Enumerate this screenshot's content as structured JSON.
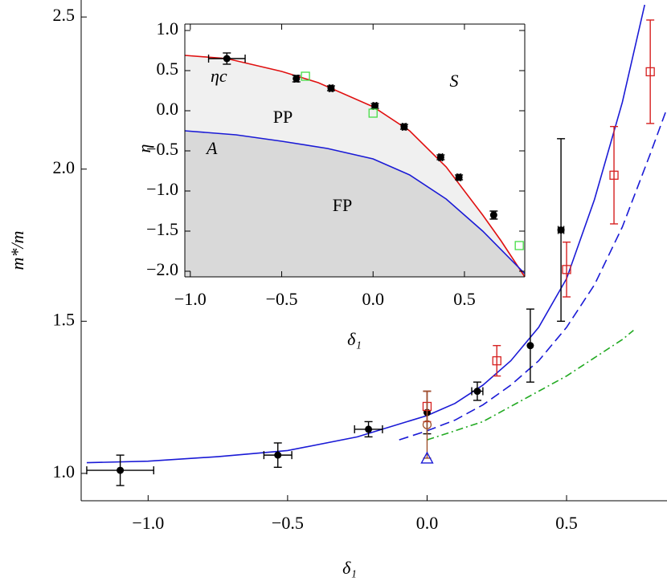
{
  "chart_data": [
    {
      "type": "scatter",
      "x_label": "δ₁",
      "y_label": "m*/m",
      "xlim": [
        -1.24,
        0.86
      ],
      "ylim": [
        0.91,
        2.54
      ],
      "xticks": [
        {
          "value": -1.0,
          "label": "−1.0"
        },
        {
          "value": -0.5,
          "label": "−0.5"
        },
        {
          "value": 0.0,
          "label": "0.0"
        },
        {
          "value": 0.5,
          "label": "0.5"
        }
      ],
      "yticks": [
        {
          "value": 1.0,
          "label": "1.0"
        },
        {
          "value": 1.5,
          "label": "1.5"
        },
        {
          "value": 2.0,
          "label": "2.0"
        },
        {
          "value": 2.5,
          "label": "2.5"
        }
      ],
      "series": [
        {
          "color": "#000000",
          "marker": "disc",
          "x": [
            -1.1,
            -0.535,
            -0.21,
            0.0,
            0.18,
            0.37,
            0.48
          ],
          "values": [
            1.01,
            1.06,
            1.145,
            1.2,
            1.27,
            1.42,
            1.8
          ],
          "yerr": [
            0.05,
            0.04,
            0.025,
            0.07,
            0.03,
            0.12,
            0.3
          ],
          "xerr": [
            0.12,
            0.05,
            0.05,
            null,
            0.02,
            null,
            0.01
          ]
        },
        {
          "color": "#d62020",
          "marker": "square",
          "x": [
            0.0,
            0.25,
            0.5,
            0.67,
            0.8
          ],
          "values": [
            1.22,
            1.37,
            1.67,
            1.98,
            2.32
          ],
          "yerr": [
            0.05,
            0.05,
            0.09,
            0.16,
            0.17
          ]
        },
        {
          "color": "#a0522d",
          "marker": "circle",
          "x": [
            0.0
          ],
          "values": [
            1.16
          ],
          "yerr": [
            0.11
          ]
        },
        {
          "color": "#1a1ad6",
          "marker": "triangle",
          "x": [
            0.0
          ],
          "values": [
            1.05
          ]
        },
        {
          "color": "#1a1ad6",
          "line": "solid",
          "x": [
            -1.22,
            -1.0,
            -0.75,
            -0.5,
            -0.25,
            0.0,
            0.1,
            0.2,
            0.3,
            0.4,
            0.5,
            0.6,
            0.7,
            0.78
          ],
          "values": [
            1.035,
            1.04,
            1.055,
            1.075,
            1.12,
            1.19,
            1.23,
            1.29,
            1.37,
            1.48,
            1.64,
            1.9,
            2.22,
            2.54
          ]
        },
        {
          "color": "#1a1ad6",
          "line": "dashed",
          "x": [
            -0.1,
            0.0,
            0.1,
            0.2,
            0.3,
            0.4,
            0.5,
            0.6,
            0.7,
            0.8,
            0.86
          ],
          "values": [
            1.11,
            1.14,
            1.175,
            1.225,
            1.29,
            1.37,
            1.48,
            1.62,
            1.81,
            2.05,
            2.2
          ]
        },
        {
          "color": "#22aa22",
          "line": "dashdot",
          "x": [
            0.0,
            0.1,
            0.2,
            0.3,
            0.4,
            0.5,
            0.6,
            0.7,
            0.74
          ],
          "values": [
            1.11,
            1.14,
            1.17,
            1.22,
            1.27,
            1.32,
            1.38,
            1.44,
            1.47
          ]
        }
      ]
    },
    {
      "type": "scatter",
      "x_label": "δ₁",
      "y_label": "η",
      "xlim": [
        -1.03,
        0.83
      ],
      "ylim": [
        -2.07,
        1.08
      ],
      "xticks": [
        {
          "value": -1.0,
          "label": "−1.0"
        },
        {
          "value": -0.5,
          "label": "−0.5"
        },
        {
          "value": 0.0,
          "label": "0.0"
        },
        {
          "value": 0.5,
          "label": "0.5"
        }
      ],
      "yticks": [
        {
          "value": 1.0,
          "label": "1.0"
        },
        {
          "value": 0.5,
          "label": "0.5"
        },
        {
          "value": 0.0,
          "label": "0.0"
        },
        {
          "value": -0.5,
          "label": "−0.5"
        },
        {
          "value": -1.0,
          "label": "−1.0"
        },
        {
          "value": -1.5,
          "label": "−1.5"
        },
        {
          "value": -2.0,
          "label": "−2.0"
        }
      ],
      "shade_colors": [
        "#f0f0f0",
        "#d9d9d9"
      ],
      "annotations": [
        "PP",
        "FP",
        "S"
      ],
      "series": [
        {
          "name": "ηc",
          "color": "#e01010",
          "line": "solid",
          "x": [
            -1.03,
            -0.8,
            -0.5,
            -0.3,
            0.0,
            0.2,
            0.4,
            0.6,
            0.7,
            0.83
          ],
          "values": [
            0.69,
            0.65,
            0.49,
            0.35,
            0.05,
            -0.25,
            -0.7,
            -1.3,
            -1.62,
            -2.07
          ]
        },
        {
          "name": "A",
          "color": "#1a1ad6",
          "line": "solid",
          "x": [
            -1.03,
            -0.75,
            -0.5,
            -0.25,
            0.0,
            0.2,
            0.4,
            0.6,
            0.83
          ],
          "values": [
            -0.25,
            -0.3,
            -0.38,
            -0.47,
            -0.6,
            -0.8,
            -1.1,
            -1.5,
            -2.03
          ]
        },
        {
          "color": "#000000",
          "marker": "disc",
          "x": [
            -0.8,
            -0.42,
            -0.23,
            0.01,
            0.17,
            0.37,
            0.47,
            0.66
          ],
          "values": [
            0.65,
            0.4,
            0.28,
            0.06,
            -0.2,
            -0.58,
            -0.83,
            -1.3
          ],
          "yerr": [
            0.07,
            0.04,
            0.03,
            0.03,
            0.03,
            0.03,
            0.03,
            0.05
          ],
          "xerr": [
            0.1,
            0.01,
            0.01,
            0.01,
            0.01,
            0.01,
            0.01,
            0.01
          ]
        },
        {
          "color": "#44dd44",
          "marker": "square",
          "x": [
            -0.37,
            0.0,
            0.8
          ],
          "values": [
            0.43,
            -0.03,
            -1.68
          ]
        }
      ]
    }
  ]
}
